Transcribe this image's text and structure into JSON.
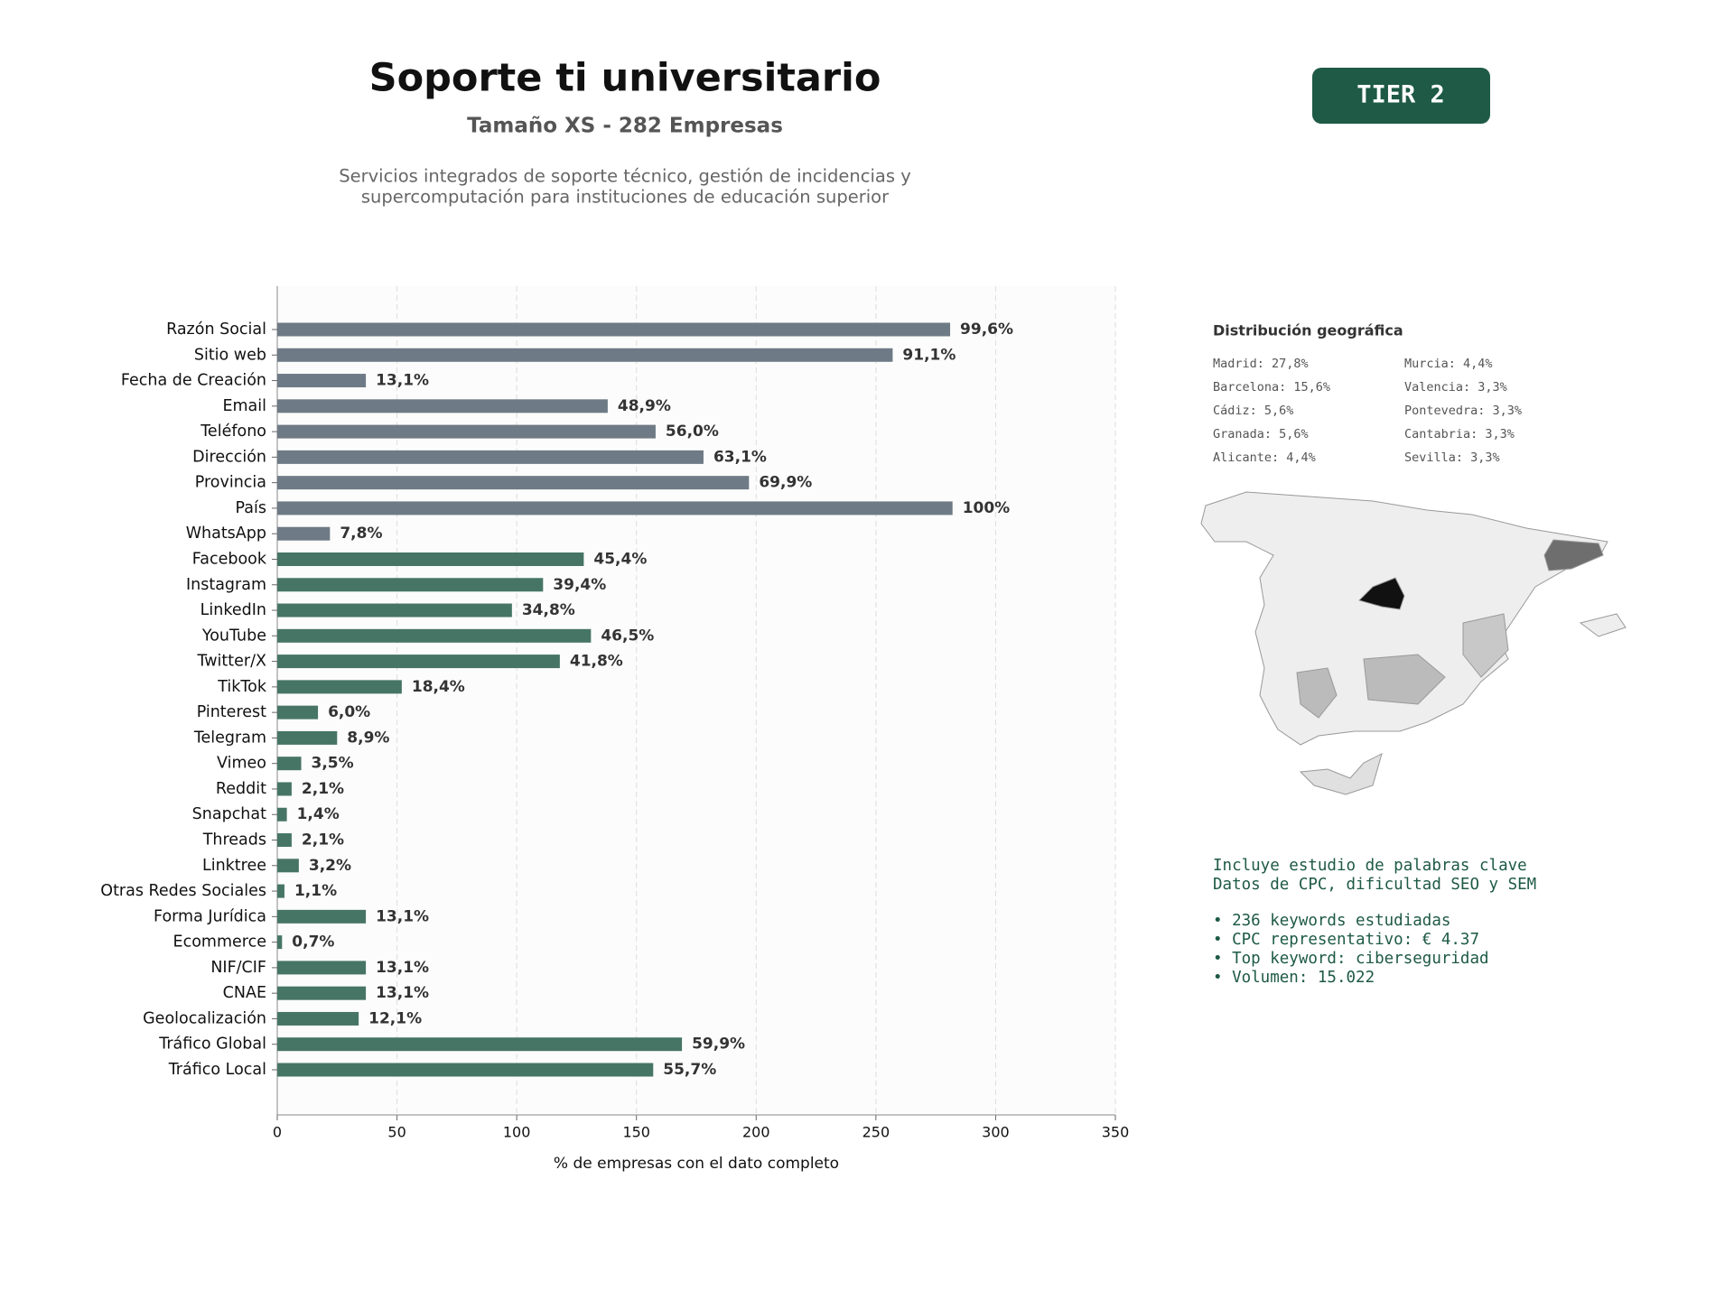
{
  "header": {
    "title": "Soporte ti universitario",
    "subtitle": "Tamaño XS - 282 Empresas",
    "description": [
      "Servicios integrados de soporte técnico, gestión de incidencias y",
      "supercomputación para instituciones de educación superior"
    ]
  },
  "badge": "TIER 2",
  "chart_data": {
    "type": "hbar",
    "xlabel": "% de empresas con el dato completo",
    "categories": [
      "Razón Social",
      "Sitio web",
      "Fecha de Creación",
      "Email",
      "Teléfono",
      "Dirección",
      "Provincia",
      "País",
      "WhatsApp",
      "Facebook",
      "Instagram",
      "LinkedIn",
      "YouTube",
      "Twitter/X",
      "TikTok",
      "Pinterest",
      "Telegram",
      "Vimeo",
      "Reddit",
      "Snapchat",
      "Threads",
      "Linktree",
      "Otras Redes Sociales",
      "Forma Jurídica",
      "Ecommerce",
      "NIF/CIF",
      "CNAE",
      "Geolocalización",
      "Tráfico Global",
      "Tráfico Local"
    ],
    "values": [
      281,
      257,
      37,
      138,
      158,
      178,
      197,
      282,
      22,
      128,
      111,
      98,
      131,
      118,
      52,
      17,
      25,
      10,
      6,
      4,
      6,
      9,
      3,
      37,
      2,
      37,
      37,
      34,
      169,
      157
    ],
    "value_labels": [
      "99,6%",
      "91,1%",
      "13,1%",
      "48,9%",
      "56,0%",
      "63,1%",
      "69,9%",
      "100%",
      "7,8%",
      "45,4%",
      "39,4%",
      "34,8%",
      "46,5%",
      "41,8%",
      "18,4%",
      "6,0%",
      "8,9%",
      "3,5%",
      "2,1%",
      "1,4%",
      "2,1%",
      "3,2%",
      "1,1%",
      "13,1%",
      "0,7%",
      "13,1%",
      "13,1%",
      "12,1%",
      "59,9%",
      "55,7%"
    ],
    "colors": [
      "#6e7a85",
      "#6e7a85",
      "#6e7a85",
      "#6e7a85",
      "#6e7a85",
      "#6e7a85",
      "#6e7a85",
      "#6e7a85",
      "#6e7a85",
      "#467565",
      "#467565",
      "#467565",
      "#467565",
      "#467565",
      "#467565",
      "#467565",
      "#467565",
      "#467565",
      "#467565",
      "#467565",
      "#467565",
      "#467565",
      "#467565",
      "#467565",
      "#467565",
      "#467565",
      "#467565",
      "#467565",
      "#467565",
      "#467565"
    ],
    "xlim": [
      0,
      350
    ],
    "xticks": [
      0,
      50,
      100,
      150,
      200,
      250,
      300,
      350
    ],
    "grid": true
  },
  "geo": {
    "title": "Distribución geográfica",
    "entries": [
      "Madrid: 27,8%",
      "Barcelona: 15,6%",
      "Cádiz: 5,6%",
      "Granada: 5,6%",
      "Alicante: 4,4%",
      "Murcia: 4,4%",
      "Valencia: 3,3%",
      "Pontevedra: 3,3%",
      "Cantabria: 3,3%",
      "Sevilla: 3,3%"
    ]
  },
  "keywords": {
    "intro": [
      "Incluye estudio de palabras clave",
      "Datos de CPC, dificultad SEO y SEM"
    ],
    "items": [
      "• 236 keywords estudiadas",
      "• CPC representativo: € 4.37",
      "• Top keyword: ciberseguridad",
      "• Volumen: 15.022"
    ]
  }
}
